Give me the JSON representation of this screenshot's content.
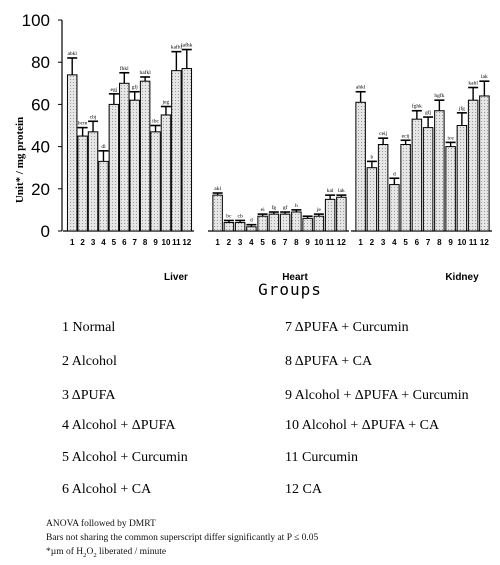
{
  "chart_data": {
    "type": "bar",
    "ylabel": "Unit* / mg protein",
    "xlabel": "Groups",
    "ylim": [
      0,
      100
    ],
    "yticks": [
      0,
      20,
      40,
      60,
      80,
      100
    ],
    "categories": [
      "1",
      "2",
      "3",
      "4",
      "5",
      "6",
      "7",
      "8",
      "9",
      "10",
      "11",
      "12"
    ],
    "grid": false,
    "panels": [
      {
        "name": "Liver",
        "values": [
          74,
          45,
          47,
          33,
          60,
          70,
          62,
          71,
          47,
          55,
          76,
          77
        ],
        "errors": [
          8,
          4,
          5,
          5,
          5,
          5,
          4,
          2,
          3,
          4,
          9,
          9
        ],
        "labels": [
          "abkl",
          "bcm",
          "cbj",
          "dl",
          "egj",
          "fhkl",
          "gfj",
          "hafkl",
          "ibc",
          "jeg",
          "kafhl",
          "lafhk"
        ]
      },
      {
        "name": "Heart",
        "values": [
          17,
          4,
          4,
          2,
          7,
          8,
          8,
          9,
          6,
          7,
          15,
          16
        ],
        "errors": [
          1,
          1,
          1,
          1,
          1,
          1,
          1,
          1,
          1,
          1,
          2,
          1
        ],
        "labels": [
          "akl",
          "bc",
          "cb",
          "d",
          "ei",
          "fg",
          "gf",
          "h",
          "",
          "je",
          "kal",
          "lak"
        ]
      },
      {
        "name": "Kidney",
        "values": [
          61,
          30,
          41,
          22,
          41,
          53,
          49,
          57,
          40,
          50,
          62,
          64
        ],
        "errors": [
          5,
          3,
          3,
          3,
          2,
          4,
          5,
          5,
          2,
          6,
          6,
          7
        ],
        "labels": [
          "ahkl",
          "b",
          "ceij",
          "d",
          "ecij",
          "fghk",
          "gfj",
          "hgfk",
          "ice",
          "jfg",
          "kahl",
          "lak"
        ]
      }
    ]
  },
  "legend": [
    "1  Normal",
    "2  Alcohol",
    "3  ΔPUFA",
    "4  Alcohol + ΔPUFA",
    "5  Alcohol + Curcumin",
    "6  Alcohol + CA",
    "7  ΔPUFA + Curcumin",
    "8  ΔPUFA + CA",
    "9  Alcohol + ΔPUFA + Curcumin",
    "10  Alcohol + ΔPUFA + CA",
    "11  Curcumin",
    "12  CA"
  ],
  "footnotes": {
    "line1": "ANOVA followed by DMRT",
    "line2": "Bars not sharing the common superscript differ significantly at P ≤ 0.05",
    "line3_pre": "*µm of H",
    "line3_sub1": "2",
    "line3_mid": "O",
    "line3_sub2": "2",
    "line3_post": " liberated / minute"
  }
}
